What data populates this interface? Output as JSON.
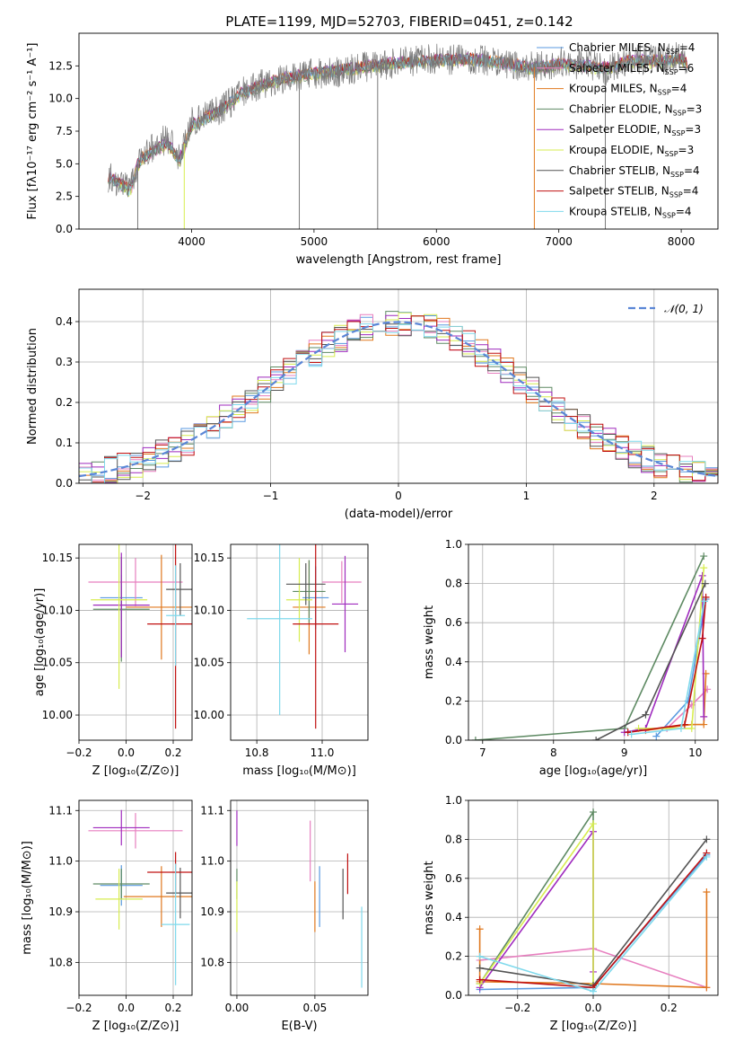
{
  "figure": {
    "title": "PLATE=1199, MJD=52703, FIBERID=0451, z=0.142"
  },
  "chart_data": [
    {
      "id": "spectrum",
      "type": "line",
      "xlabel": "wavelength [Angstrom, rest frame]",
      "ylabel": "Flux [fλ10⁻¹⁷ erg cm⁻² s⁻¹ A⁻¹]",
      "xlim": [
        3080,
        8300
      ],
      "ylim": [
        0,
        15
      ],
      "xticks": [
        4000,
        5000,
        6000,
        7000,
        8000
      ],
      "yticks": [
        0.0,
        2.5,
        5.0,
        7.5,
        10.0,
        12.5
      ],
      "legend_position": "top-right",
      "data_x": [
        3320,
        3400,
        3500,
        3560,
        3600,
        3700,
        3800,
        3900,
        3950,
        4000,
        4100,
        4200,
        4300,
        4400,
        4600,
        4800,
        5000,
        5200,
        5400,
        5600,
        5800,
        6000,
        6200,
        6400,
        6600,
        6800,
        7000,
        7200,
        7400,
        7600,
        7800,
        8000,
        8050
      ],
      "data_y": [
        4.0,
        3.6,
        3.0,
        5.0,
        5.6,
        6.2,
        7.0,
        5.6,
        6.8,
        8.2,
        8.6,
        9.0,
        9.6,
        10.4,
        11.2,
        11.6,
        11.9,
        12.0,
        12.4,
        12.6,
        12.9,
        13.0,
        13.0,
        12.9,
        12.6,
        12.4,
        12.8,
        12.6,
        12.2,
        13.1,
        12.9,
        13.2,
        12.6
      ],
      "model_y": [
        4.0,
        3.5,
        2.9,
        4.9,
        5.4,
        6.0,
        6.6,
        5.2,
        6.5,
        7.9,
        8.4,
        8.9,
        9.5,
        10.3,
        11.1,
        11.6,
        11.9,
        12.1,
        12.4,
        12.6,
        12.8,
        12.9,
        13.0,
        12.9,
        12.6,
        12.3,
        12.6,
        12.5,
        12.3,
        12.9,
        12.8,
        13.0,
        12.6
      ],
      "series": [
        {
          "name": "Chabrier MILES, N",
          "sub": "SSP",
          "suffix": "=4",
          "color": "#5a9ae0"
        },
        {
          "name": "Salpeter MILES, N",
          "sub": "SSP",
          "suffix": "=6",
          "color": "#e77fbf"
        },
        {
          "name": "Kroupa MILES, N",
          "sub": "SSP",
          "suffix": "=4",
          "color": "#e0781e"
        },
        {
          "name": "Chabrier ELODIE, N",
          "sub": "SSP",
          "suffix": "=3",
          "color": "#5e8a63"
        },
        {
          "name": "Salpeter ELODIE, N",
          "sub": "SSP",
          "suffix": "=3",
          "color": "#9f2bbe"
        },
        {
          "name": "Kroupa ELODIE, N",
          "sub": "SSP",
          "suffix": "=3",
          "color": "#d7ec50"
        },
        {
          "name": "Chabrier STELIB, N",
          "sub": "SSP",
          "suffix": "=4",
          "color": "#555555"
        },
        {
          "name": "Salpeter STELIB, N",
          "sub": "SSP",
          "suffix": "=4",
          "color": "#c01010"
        },
        {
          "name": "Kroupa STELIB, N",
          "sub": "SSP",
          "suffix": "=4",
          "color": "#7fd9ec"
        }
      ]
    },
    {
      "id": "residuals",
      "type": "histogram",
      "xlabel": "(data-model)/error",
      "ylabel": "Normed distribution",
      "xlim": [
        -2.5,
        2.5
      ],
      "ylim": [
        0,
        0.48
      ],
      "xticks": [
        -2,
        -1,
        0,
        1,
        2
      ],
      "yticks": [
        0.0,
        0.1,
        0.2,
        0.3,
        0.4
      ],
      "bin_width": 0.1,
      "legend_label": "𝒩(0, 1)",
      "legend_position": "top-right",
      "normal_curve": {
        "mean": 0,
        "sigma": 1,
        "color": "#5a86d6"
      }
    },
    {
      "id": "age-vs-Z",
      "type": "errorbar",
      "xlabel": "Z [log₁₀(Z/Z⊙)]",
      "ylabel": "age  [log₁₀(age/yr)]",
      "xlim": [
        -0.2,
        0.28
      ],
      "ylim": [
        9.976,
        10.163
      ],
      "xticks": [
        -0.2,
        0.0,
        0.2
      ],
      "yticks": [
        10.0,
        10.05,
        10.1,
        10.15
      ],
      "points": [
        {
          "x": -0.02,
          "y": 10.112,
          "xerr": 0.09,
          "yerr": 0.022,
          "color": "#5a9ae0"
        },
        {
          "x": 0.04,
          "y": 10.127,
          "xerr": 0.2,
          "yerr": 0.023,
          "color": "#e77fbf"
        },
        {
          "x": 0.15,
          "y": 10.103,
          "xerr": 0.15,
          "yerr": 0.05,
          "color": "#e0781e"
        },
        {
          "x": -0.02,
          "y": 10.101,
          "xerr": 0.12,
          "yerr": 0.05,
          "color": "#5e8a63"
        },
        {
          "x": -0.02,
          "y": 10.105,
          "xerr": 0.12,
          "yerr": 0.05,
          "color": "#9f2bbe"
        },
        {
          "x": -0.03,
          "y": 10.11,
          "xerr": 0.12,
          "yerr": 0.085,
          "color": "#d7ec50"
        },
        {
          "x": 0.23,
          "y": 10.12,
          "xerr": 0.06,
          "yerr": 0.025,
          "color": "#555555"
        },
        {
          "x": 0.21,
          "y": 10.087,
          "xerr": 0.12,
          "yerr": 0.1,
          "color": "#c01010"
        },
        {
          "x": 0.21,
          "y": 10.095,
          "xerr": 0.04,
          "yerr": 0.048,
          "color": "#7fd9ec"
        }
      ]
    },
    {
      "id": "age-vs-mass",
      "type": "errorbar",
      "xlabel": "mass [log₁₀(M/M⊙)]",
      "ylabel": "",
      "xlim": [
        10.72,
        11.14
      ],
      "ylim": [
        9.976,
        10.163
      ],
      "xticks": [
        10.8,
        11.0
      ],
      "yticks": [
        10.0,
        10.05,
        10.1,
        10.15
      ],
      "points": [
        {
          "x": 10.98,
          "y": 10.112,
          "xerr": 0.04,
          "yerr": 0.03,
          "color": "#5a9ae0"
        },
        {
          "x": 11.06,
          "y": 10.127,
          "xerr": 0.06,
          "yerr": 0.02,
          "color": "#e77fbf"
        },
        {
          "x": 10.96,
          "y": 10.103,
          "xerr": 0.05,
          "yerr": 0.045,
          "color": "#e0781e"
        },
        {
          "x": 10.96,
          "y": 10.118,
          "xerr": 0.05,
          "yerr": 0.03,
          "color": "#5e8a63"
        },
        {
          "x": 11.07,
          "y": 10.106,
          "xerr": 0.04,
          "yerr": 0.046,
          "color": "#9f2bbe"
        },
        {
          "x": 10.93,
          "y": 10.11,
          "xerr": 0.04,
          "yerr": 0.04,
          "color": "#d7ec50"
        },
        {
          "x": 10.95,
          "y": 10.125,
          "xerr": 0.06,
          "yerr": 0.02,
          "color": "#555555"
        },
        {
          "x": 10.98,
          "y": 10.087,
          "xerr": 0.07,
          "yerr": 0.1,
          "color": "#c01010"
        },
        {
          "x": 10.87,
          "y": 10.092,
          "xerr": 0.1,
          "yerr": 0.092,
          "color": "#7fd9ec"
        }
      ]
    },
    {
      "id": "weight-vs-age",
      "type": "line",
      "xlabel": "age  [log₁₀(age/yr)]",
      "ylabel": "mass weight",
      "xlim": [
        6.8,
        10.32
      ],
      "ylim": [
        0,
        1.0
      ],
      "xticks": [
        7,
        8,
        9,
        10
      ],
      "yticks": [
        0.0,
        0.2,
        0.4,
        0.6,
        0.8,
        1.0
      ],
      "series": [
        {
          "color": "#5a9ae0",
          "x": [
            9.45,
            9.9,
            10.15
          ],
          "y": [
            0.02,
            0.2,
            0.72
          ]
        },
        {
          "color": "#e77fbf",
          "x": [
            9.6,
            9.95,
            10.17
          ],
          "y": [
            0.06,
            0.18,
            0.26
          ]
        },
        {
          "color": "#e0781e",
          "x": [
            9.3,
            9.95,
            10.12,
            10.15
          ],
          "y": [
            0.05,
            0.08,
            0.08,
            0.34
          ]
        },
        {
          "color": "#5e8a63",
          "x": [
            6.9,
            9.0,
            10.12
          ],
          "y": [
            0.0,
            0.06,
            0.94
          ]
        },
        {
          "color": "#9f2bbe",
          "x": [
            9.0,
            9.3,
            10.1,
            10.12
          ],
          "y": [
            0.04,
            0.06,
            0.84,
            0.12
          ]
        },
        {
          "color": "#d7ec50",
          "x": [
            9.2,
            9.95,
            10.12
          ],
          "y": [
            0.06,
            0.06,
            0.88
          ]
        },
        {
          "color": "#555555",
          "x": [
            8.6,
            9.3,
            10.14
          ],
          "y": [
            0.0,
            0.13,
            0.8
          ]
        },
        {
          "color": "#c01010",
          "x": [
            9.05,
            9.85,
            10.1,
            10.15
          ],
          "y": [
            0.04,
            0.08,
            0.52,
            0.73
          ]
        },
        {
          "color": "#7fd9ec",
          "x": [
            9.1,
            9.8,
            10.13
          ],
          "y": [
            0.03,
            0.06,
            0.71
          ]
        }
      ]
    },
    {
      "id": "mass-vs-Z",
      "type": "errorbar",
      "xlabel": "Z [log₁₀(Z/Z⊙)]",
      "ylabel": "mass [log₁₀(M/M⊙)]",
      "xlim": [
        -0.2,
        0.28
      ],
      "ylim": [
        10.735,
        11.12
      ],
      "xticks": [
        -0.2,
        0.0,
        0.2
      ],
      "yticks": [
        10.8,
        10.9,
        11.0,
        11.1
      ],
      "points": [
        {
          "x": -0.02,
          "y": 10.952,
          "xerr": 0.09,
          "yerr": 0.04,
          "color": "#5a9ae0"
        },
        {
          "x": 0.04,
          "y": 11.06,
          "xerr": 0.2,
          "yerr": 0.035,
          "color": "#e77fbf"
        },
        {
          "x": 0.15,
          "y": 10.93,
          "xerr": 0.16,
          "yerr": 0.06,
          "color": "#e0781e"
        },
        {
          "x": -0.02,
          "y": 10.955,
          "xerr": 0.12,
          "yerr": 0.03,
          "color": "#5e8a63"
        },
        {
          "x": -0.02,
          "y": 11.066,
          "xerr": 0.12,
          "yerr": 0.035,
          "color": "#9f2bbe"
        },
        {
          "x": -0.03,
          "y": 10.925,
          "xerr": 0.1,
          "yerr": 0.06,
          "color": "#d7ec50"
        },
        {
          "x": 0.23,
          "y": 10.937,
          "xerr": 0.06,
          "yerr": 0.05,
          "color": "#555555"
        },
        {
          "x": 0.21,
          "y": 10.978,
          "xerr": 0.12,
          "yerr": 0.04,
          "color": "#c01010"
        },
        {
          "x": 0.21,
          "y": 10.875,
          "xerr": 0.06,
          "yerr": 0.12,
          "color": "#7fd9ec"
        }
      ]
    },
    {
      "id": "mass-vs-ebv",
      "type": "errorbar",
      "xlabel": "E(B-V)",
      "ylabel": "",
      "xlim": [
        -0.004,
        0.084
      ],
      "ylim": [
        10.735,
        11.12
      ],
      "xticks": [
        0.0,
        0.05
      ],
      "yticks": [
        10.8,
        10.9,
        11.0,
        11.1
      ],
      "points": [
        {
          "x": 0.0,
          "y": 11.065,
          "xerr": 0,
          "yerr": 0.035,
          "color": "#9f2bbe"
        },
        {
          "x": 0.0,
          "y": 10.955,
          "xerr": 0,
          "yerr": 0.03,
          "color": "#5e8a63"
        },
        {
          "x": 0.0,
          "y": 10.91,
          "xerr": 0,
          "yerr": 0.05,
          "color": "#d7ec50"
        },
        {
          "x": 0.047,
          "y": 11.02,
          "xerr": 0,
          "yerr": 0.06,
          "color": "#e77fbf"
        },
        {
          "x": 0.05,
          "y": 10.91,
          "xerr": 0,
          "yerr": 0.05,
          "color": "#e0781e"
        },
        {
          "x": 0.053,
          "y": 10.93,
          "xerr": 0,
          "yerr": 0.06,
          "color": "#5a9ae0"
        },
        {
          "x": 0.068,
          "y": 10.935,
          "xerr": 0,
          "yerr": 0.05,
          "color": "#555555"
        },
        {
          "x": 0.071,
          "y": 10.975,
          "xerr": 0,
          "yerr": 0.04,
          "color": "#c01010"
        },
        {
          "x": 0.08,
          "y": 10.83,
          "xerr": 0,
          "yerr": 0.08,
          "color": "#7fd9ec"
        }
      ]
    },
    {
      "id": "weight-vs-Z",
      "type": "line",
      "xlabel": "Z [log₁₀(Z/Z⊙)]",
      "ylabel": "mass weight",
      "xlim": [
        -0.33,
        0.33
      ],
      "ylim": [
        0,
        1.0
      ],
      "xticks": [
        -0.2,
        0.0,
        0.2
      ],
      "yticks": [
        0.0,
        0.2,
        0.4,
        0.6,
        0.8,
        1.0
      ],
      "series": [
        {
          "color": "#5a9ae0",
          "x": [
            -0.3,
            0.0,
            0.3
          ],
          "y": [
            0.03,
            0.04,
            0.72
          ]
        },
        {
          "color": "#e77fbf",
          "x": [
            -0.3,
            0.0,
            0.3
          ],
          "y": [
            0.18,
            0.24,
            0.04
          ]
        },
        {
          "color": "#e0781e",
          "x": [
            -0.3,
            -0.3,
            0.0,
            0.3,
            0.3
          ],
          "y": [
            0.34,
            0.07,
            0.06,
            0.04,
            0.53
          ]
        },
        {
          "color": "#5e8a63",
          "x": [
            -0.3,
            0.0,
            0.0
          ],
          "y": [
            0.06,
            0.94,
            0.04
          ]
        },
        {
          "color": "#9f2bbe",
          "x": [
            -0.3,
            0.0,
            0.0
          ],
          "y": [
            0.04,
            0.84,
            0.12
          ]
        },
        {
          "color": "#d7ec50",
          "x": [
            -0.3,
            0.0,
            0.0
          ],
          "y": [
            0.06,
            0.88,
            0.06
          ]
        },
        {
          "color": "#555555",
          "x": [
            -0.3,
            0.0,
            0.3
          ],
          "y": [
            0.14,
            0.05,
            0.8
          ]
        },
        {
          "color": "#c01010",
          "x": [
            -0.3,
            0.0,
            0.3
          ],
          "y": [
            0.08,
            0.04,
            0.73
          ]
        },
        {
          "color": "#7fd9ec",
          "x": [
            -0.3,
            0.0,
            0.3
          ],
          "y": [
            0.2,
            0.02,
            0.71
          ]
        }
      ]
    }
  ]
}
